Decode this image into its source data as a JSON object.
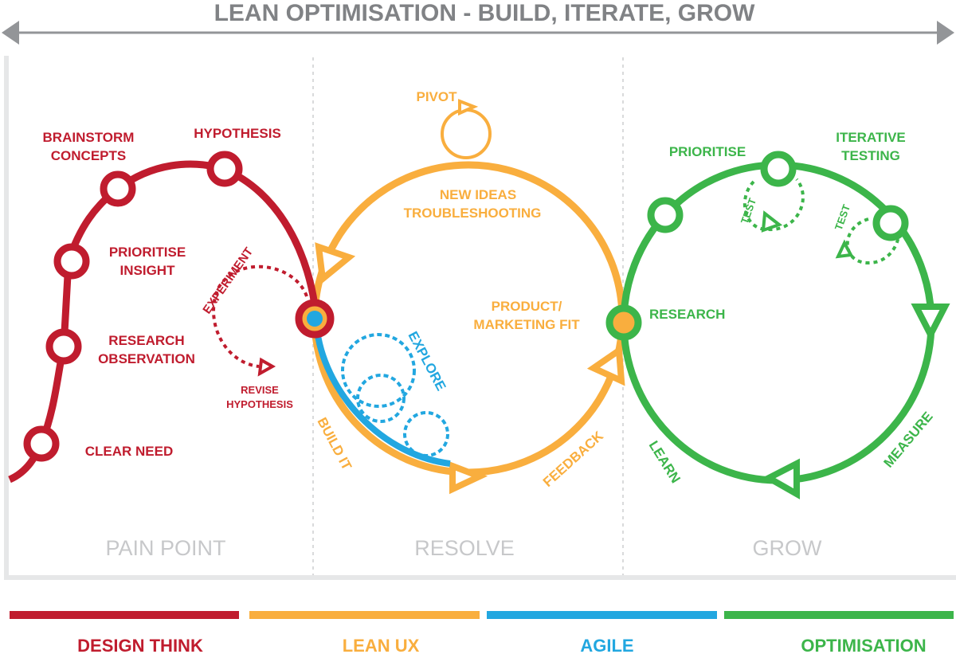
{
  "title": "LEAN OPTIMISATION - BUILD, ITERATE, GROW",
  "sections": [
    "PAIN POINT",
    "RESOLVE",
    "GROW"
  ],
  "design_think": {
    "steps": [
      "CLEAR NEED",
      "RESEARCH",
      "OBSERVATION",
      "PRIORITISE",
      "INSIGHT",
      "BRAINSTORM",
      "CONCEPTS",
      "HYPOTHESIS"
    ],
    "experiment": "EXPERIMENT",
    "revise": [
      "REVISE",
      "HYPOTHESIS"
    ]
  },
  "lean_ux": {
    "pivot": "PIVOT",
    "new_ideas": [
      "NEW IDEAS",
      "TROUBLESHOOTING"
    ],
    "fit": [
      "PRODUCT/",
      "MARKETING FIT"
    ],
    "build_it": "BUILD IT",
    "feedback": "FEEDBACK"
  },
  "agile": {
    "explore": "EXPLORE"
  },
  "optimisation": {
    "research": "RESEARCH",
    "prioritise": "PRIORITISE",
    "iterative": [
      "ITERATIVE",
      "TESTING"
    ],
    "test": "TEST",
    "measure": "MEASURE",
    "learn": "LEARN"
  },
  "legend": [
    {
      "label": "DESIGN THINK",
      "color": "#c01c2e"
    },
    {
      "label": "LEAN UX",
      "color": "#f9ae3e"
    },
    {
      "label": "AGILE",
      "color": "#22a7e0"
    },
    {
      "label": "OPTIMISATION",
      "color": "#3cb54a"
    }
  ]
}
